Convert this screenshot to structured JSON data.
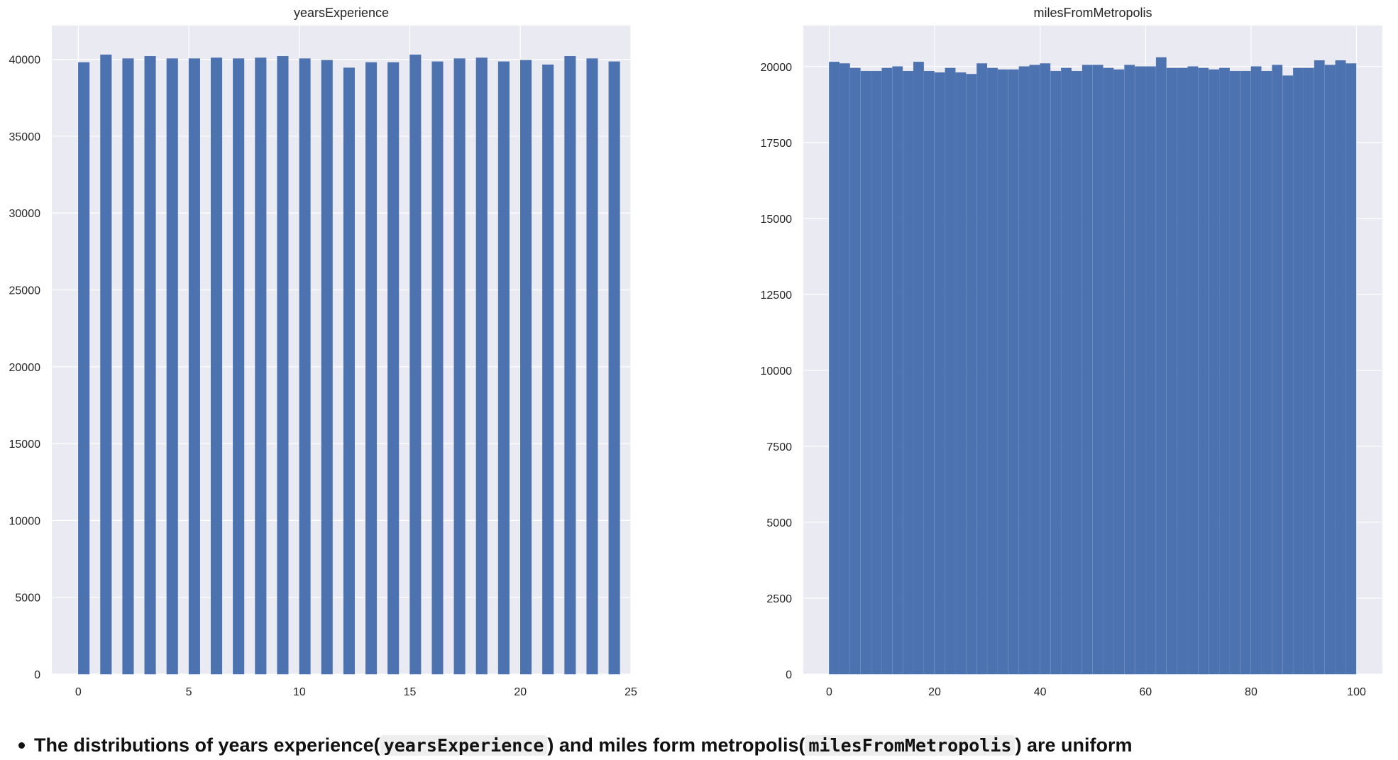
{
  "chart_data": [
    {
      "type": "bar",
      "title": "yearsExperience",
      "xlabel": "",
      "ylabel": "",
      "x": [
        0,
        1,
        2,
        3,
        4,
        5,
        6,
        7,
        8,
        9,
        10,
        11,
        12,
        13,
        14,
        15,
        16,
        17,
        18,
        19,
        20,
        21,
        22,
        23,
        24
      ],
      "values": [
        39800,
        40300,
        40050,
        40200,
        40050,
        40050,
        40100,
        40050,
        40100,
        40200,
        40050,
        39950,
        39450,
        39800,
        39800,
        40300,
        39850,
        40050,
        40100,
        39850,
        39950,
        39650,
        40200,
        40050,
        39850
      ],
      "xlim": [
        -1.2,
        25
      ],
      "ylim": [
        0,
        42200
      ],
      "xticks": [
        0,
        5,
        10,
        15,
        20,
        25
      ],
      "yticks": [
        0,
        5000,
        10000,
        15000,
        20000,
        25000,
        30000,
        35000,
        40000
      ],
      "grid": true
    },
    {
      "type": "bar",
      "title": "milesFromMetropolis",
      "xlabel": "",
      "ylabel": "",
      "x": [
        0,
        2,
        4,
        6,
        8,
        10,
        12,
        14,
        16,
        18,
        20,
        22,
        24,
        26,
        28,
        30,
        32,
        34,
        36,
        38,
        40,
        42,
        44,
        46,
        48,
        50,
        52,
        54,
        56,
        58,
        60,
        62,
        64,
        66,
        68,
        70,
        72,
        74,
        76,
        78,
        80,
        82,
        84,
        86,
        88,
        90,
        92,
        94,
        96,
        98
      ],
      "values": [
        20150,
        20100,
        19950,
        19850,
        19850,
        19950,
        20000,
        19850,
        20150,
        19850,
        19800,
        19950,
        19800,
        19750,
        20100,
        19950,
        19900,
        19900,
        20000,
        20050,
        20100,
        19850,
        19950,
        19850,
        20050,
        20050,
        19950,
        19900,
        20050,
        20000,
        20000,
        20300,
        19950,
        19950,
        20000,
        19950,
        19900,
        19950,
        19850,
        19850,
        20000,
        19850,
        20050,
        19700,
        19950,
        19950,
        20200,
        20050,
        20200,
        20100
      ],
      "xlim": [
        -4.9,
        104.9
      ],
      "ylim": [
        0,
        21350
      ],
      "xticks": [
        0,
        20,
        40,
        60,
        80,
        100
      ],
      "yticks": [
        0,
        2500,
        5000,
        7500,
        10000,
        12500,
        15000,
        17500,
        20000
      ],
      "grid": true
    }
  ],
  "colors": {
    "bar": "#4c72b0",
    "plot_bg": "#eaeaf2",
    "grid": "#ffffff",
    "text": "#262626"
  },
  "note": {
    "text_1": "The distributions of years experience(",
    "code_1": "yearsExperience",
    "text_2": ") and miles form metropolis(",
    "code_2": "milesFromMetropolis",
    "text_3": ") are uniform"
  }
}
